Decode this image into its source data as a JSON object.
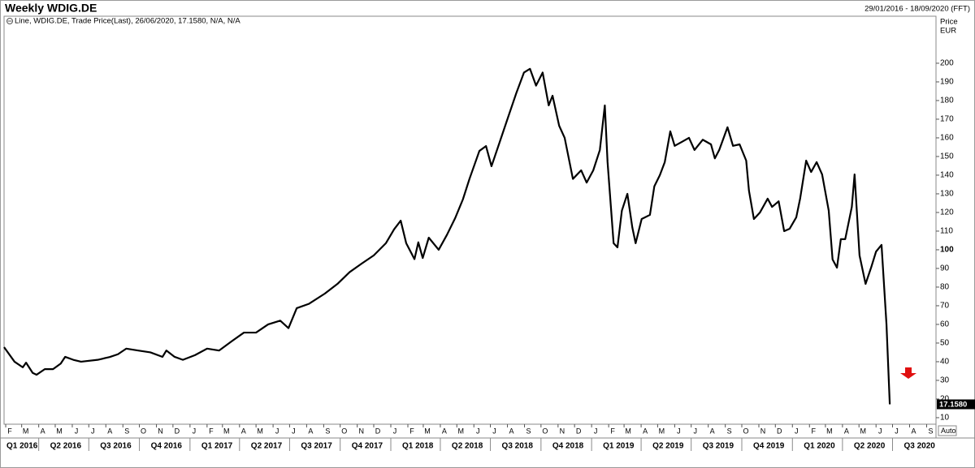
{
  "chart_data": {
    "type": "line",
    "title": "Weekly WDIG.DE",
    "date_range": "29/01/2016 - 18/09/2020 (FFT)",
    "y_axis_title": "Price",
    "y_axis_unit": "EUR",
    "scale_mode": "Auto",
    "last_value_label": "17.1580",
    "x": [
      "2016-01-29",
      "2016-02-17",
      "2016-03-03",
      "2016-03-09",
      "2016-03-21",
      "2016-03-28",
      "2016-04-12",
      "2016-04-27",
      "2016-05-11",
      "2016-05-19",
      "2016-06-03",
      "2016-06-17",
      "2016-07-17",
      "2016-08-08",
      "2016-08-23",
      "2016-09-07",
      "2016-09-29",
      "2016-10-21",
      "2016-11-12",
      "2016-11-19",
      "2016-12-04",
      "2016-12-19",
      "2017-01-10",
      "2017-02-01",
      "2017-02-23",
      "2017-03-18",
      "2017-04-09",
      "2017-05-01",
      "2017-05-23",
      "2017-06-14",
      "2017-06-29",
      "2017-07-14",
      "2017-08-05",
      "2017-09-03",
      "2017-09-26",
      "2017-10-18",
      "2017-11-09",
      "2017-12-01",
      "2017-12-23",
      "2018-01-07",
      "2018-01-19",
      "2018-01-29",
      "2018-02-13",
      "2018-02-20",
      "2018-02-28",
      "2018-03-11",
      "2018-03-29",
      "2018-04-13",
      "2018-04-28",
      "2018-05-12",
      "2018-05-24",
      "2018-06-11",
      "2018-06-23",
      "2018-07-03",
      "2018-07-18",
      "2018-08-02",
      "2018-08-17",
      "2018-08-31",
      "2018-09-11",
      "2018-09-22",
      "2018-10-04",
      "2018-10-15",
      "2018-10-22",
      "2018-11-03",
      "2018-11-13",
      "2018-11-28",
      "2018-12-13",
      "2018-12-23",
      "2019-01-04",
      "2019-01-16",
      "2019-01-25",
      "2019-01-30",
      "2019-02-10",
      "2019-02-17",
      "2019-02-25",
      "2019-03-07",
      "2019-03-16",
      "2019-03-22",
      "2019-04-02",
      "2019-04-17",
      "2019-04-25",
      "2019-05-05",
      "2019-05-14",
      "2019-05-24",
      "2019-06-01",
      "2019-06-15",
      "2019-06-27",
      "2019-07-07",
      "2019-07-22",
      "2019-08-06",
      "2019-08-13",
      "2019-08-21",
      "2019-09-05",
      "2019-09-15",
      "2019-09-27",
      "2019-10-09",
      "2019-10-14",
      "2019-10-23",
      "2019-11-03",
      "2019-11-17",
      "2019-11-25",
      "2019-12-07",
      "2019-12-17",
      "2019-12-27",
      "2020-01-08",
      "2020-01-15",
      "2020-01-26",
      "2020-02-04",
      "2020-02-14",
      "2020-02-24",
      "2020-03-07",
      "2020-03-14",
      "2020-03-22",
      "2020-03-29",
      "2020-04-06",
      "2020-04-18",
      "2020-04-23",
      "2020-05-02",
      "2020-05-13",
      "2020-05-23",
      "2020-06-01",
      "2020-06-11",
      "2020-06-20",
      "2020-06-26"
    ],
    "series": [
      {
        "name": "Line, WDIG.DE, Trade Price(Last), 26/06/2020, 17.1580, N/A, N/A",
        "color": "#000000",
        "values": [
          47.8,
          40,
          37,
          39.5,
          34,
          33,
          36,
          36,
          39,
          42.6,
          41,
          40,
          41,
          42.5,
          44,
          47,
          46,
          45,
          42.6,
          46,
          42.6,
          41,
          43.5,
          47,
          46,
          51,
          55.6,
          55.6,
          60,
          62,
          58,
          68.7,
          71,
          76.5,
          81.7,
          88,
          92.6,
          97,
          103.5,
          111,
          115.6,
          103.5,
          95,
          104,
          95.6,
          106.5,
          100,
          108,
          117,
          127,
          138,
          153,
          155.6,
          144.8,
          157.8,
          170.9,
          183.9,
          195,
          197,
          188,
          195,
          177.4,
          182.6,
          166.5,
          160,
          138,
          142.6,
          136,
          142.6,
          153.5,
          177.4,
          147,
          103.5,
          101.3,
          121,
          130,
          112,
          103.5,
          116.5,
          118.7,
          134,
          140,
          147,
          163.5,
          155.7,
          158,
          160,
          153.5,
          159,
          156.5,
          149,
          153.5,
          165.7,
          155.7,
          156.5,
          147.8,
          131.7,
          116.5,
          120,
          127.4,
          123,
          126,
          110,
          111.3,
          117.4,
          127.4,
          147.8,
          141.7,
          147,
          140.4,
          121,
          94.8,
          90.4,
          105.7,
          105.7,
          123,
          140.4,
          97,
          81.7,
          90.4,
          99,
          102.6,
          60,
          17.158
        ]
      }
    ],
    "xlim": [
      "2016-01-29",
      "2020-09-18"
    ],
    "ylim": [
      6.5,
      225.2
    ],
    "yticks": [
      10,
      20,
      30,
      40,
      50,
      60,
      70,
      80,
      90,
      100,
      110,
      120,
      130,
      140,
      150,
      160,
      170,
      180,
      190,
      200
    ],
    "emphasized_ytick": 100,
    "xticks": [
      {
        "value": "2016-02-01",
        "label": "F"
      },
      {
        "value": "2016-03-01",
        "label": "M"
      },
      {
        "value": "2016-04-01",
        "label": "A"
      },
      {
        "value": "2016-05-01",
        "label": "M"
      },
      {
        "value": "2016-06-01",
        "label": "J"
      },
      {
        "value": "2016-07-01",
        "label": "J"
      },
      {
        "value": "2016-08-01",
        "label": "A"
      },
      {
        "value": "2016-09-01",
        "label": "S"
      },
      {
        "value": "2016-10-01",
        "label": "O"
      },
      {
        "value": "2016-11-01",
        "label": "N"
      },
      {
        "value": "2016-12-01",
        "label": "D"
      },
      {
        "value": "2017-01-01",
        "label": "J"
      },
      {
        "value": "2017-02-01",
        "label": "F"
      },
      {
        "value": "2017-03-01",
        "label": "M"
      },
      {
        "value": "2017-04-01",
        "label": "A"
      },
      {
        "value": "2017-05-01",
        "label": "M"
      },
      {
        "value": "2017-06-01",
        "label": "J"
      },
      {
        "value": "2017-07-01",
        "label": "J"
      },
      {
        "value": "2017-08-01",
        "label": "A"
      },
      {
        "value": "2017-09-01",
        "label": "S"
      },
      {
        "value": "2017-10-01",
        "label": "O"
      },
      {
        "value": "2017-11-01",
        "label": "N"
      },
      {
        "value": "2017-12-01",
        "label": "D"
      },
      {
        "value": "2018-01-01",
        "label": "J"
      },
      {
        "value": "2018-02-01",
        "label": "F"
      },
      {
        "value": "2018-03-01",
        "label": "M"
      },
      {
        "value": "2018-04-01",
        "label": "A"
      },
      {
        "value": "2018-05-01",
        "label": "M"
      },
      {
        "value": "2018-06-01",
        "label": "J"
      },
      {
        "value": "2018-07-01",
        "label": "J"
      },
      {
        "value": "2018-08-01",
        "label": "A"
      },
      {
        "value": "2018-09-01",
        "label": "S"
      },
      {
        "value": "2018-10-01",
        "label": "O"
      },
      {
        "value": "2018-11-01",
        "label": "N"
      },
      {
        "value": "2018-12-01",
        "label": "D"
      },
      {
        "value": "2019-01-01",
        "label": "J"
      },
      {
        "value": "2019-02-01",
        "label": "F"
      },
      {
        "value": "2019-03-01",
        "label": "M"
      },
      {
        "value": "2019-04-01",
        "label": "A"
      },
      {
        "value": "2019-05-01",
        "label": "M"
      },
      {
        "value": "2019-06-01",
        "label": "J"
      },
      {
        "value": "2019-07-01",
        "label": "J"
      },
      {
        "value": "2019-08-01",
        "label": "A"
      },
      {
        "value": "2019-09-01",
        "label": "S"
      },
      {
        "value": "2019-10-01",
        "label": "O"
      },
      {
        "value": "2019-11-01",
        "label": "N"
      },
      {
        "value": "2019-12-01",
        "label": "D"
      },
      {
        "value": "2020-01-01",
        "label": "J"
      },
      {
        "value": "2020-02-01",
        "label": "F"
      },
      {
        "value": "2020-03-01",
        "label": "M"
      },
      {
        "value": "2020-04-01",
        "label": "A"
      },
      {
        "value": "2020-05-01",
        "label": "M"
      },
      {
        "value": "2020-06-01",
        "label": "J"
      },
      {
        "value": "2020-07-01",
        "label": "J"
      },
      {
        "value": "2020-08-01",
        "label": "A"
      },
      {
        "value": "2020-09-01",
        "label": "S"
      }
    ],
    "quarter_ticks": [
      {
        "value": "2016-01-01",
        "label": "Q1 2016"
      },
      {
        "value": "2016-04-01",
        "label": "Q2 2016"
      },
      {
        "value": "2016-07-01",
        "label": "Q3 2016"
      },
      {
        "value": "2016-10-01",
        "label": "Q4 2016"
      },
      {
        "value": "2017-01-01",
        "label": "Q1 2017"
      },
      {
        "value": "2017-04-01",
        "label": "Q2 2017"
      },
      {
        "value": "2017-07-01",
        "label": "Q3 2017"
      },
      {
        "value": "2017-10-01",
        "label": "Q4 2017"
      },
      {
        "value": "2018-01-01",
        "label": "Q1 2018"
      },
      {
        "value": "2018-04-01",
        "label": "Q2 2018"
      },
      {
        "value": "2018-07-01",
        "label": "Q3 2018"
      },
      {
        "value": "2018-10-01",
        "label": "Q4 2018"
      },
      {
        "value": "2019-01-01",
        "label": "Q1 2019"
      },
      {
        "value": "2019-04-01",
        "label": "Q2 2019"
      },
      {
        "value": "2019-07-01",
        "label": "Q3 2019"
      },
      {
        "value": "2019-10-01",
        "label": "Q4 2019"
      },
      {
        "value": "2020-01-01",
        "label": "Q1 2020"
      },
      {
        "value": "2020-04-01",
        "label": "Q2 2020"
      },
      {
        "value": "2020-07-01",
        "label": "Q3 2020"
      }
    ]
  }
}
